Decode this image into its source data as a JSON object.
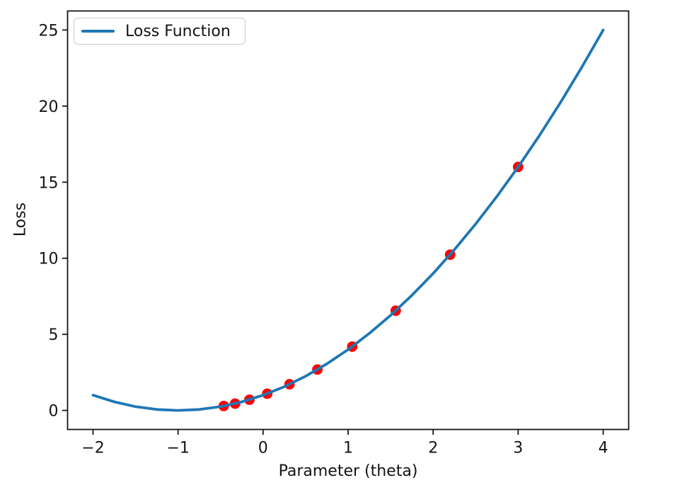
{
  "chart_data": {
    "type": "line",
    "xlabel": "Parameter (theta)",
    "ylabel": "Loss",
    "xlim": [
      -2.3,
      4.3
    ],
    "ylim": [
      -1.25,
      26.25
    ],
    "grid": false,
    "background": "#ffffff",
    "x_ticks": {
      "values": [
        -2,
        -1,
        0,
        1,
        2,
        3,
        4
      ],
      "labels": [
        "−2",
        "−1",
        "0",
        "1",
        "2",
        "3",
        "4"
      ]
    },
    "y_ticks": {
      "values": [
        0,
        5,
        10,
        15,
        20,
        25
      ],
      "labels": [
        "0",
        "5",
        "10",
        "15",
        "20",
        "25"
      ]
    },
    "legend": {
      "position": "upper left",
      "entries": [
        {
          "label": "Loss Function",
          "color": "#1f77b4",
          "marker": "line"
        }
      ]
    },
    "series": [
      {
        "name": "Loss Function",
        "type": "line",
        "color": "#1f77b4",
        "x": [
          -2,
          -1.75,
          -1.5,
          -1.25,
          -1,
          -0.75,
          -0.5,
          -0.25,
          0,
          0.25,
          0.5,
          0.75,
          1,
          1.25,
          1.5,
          1.75,
          2,
          2.25,
          2.5,
          2.75,
          3,
          3.25,
          3.5,
          3.75,
          4
        ],
        "y": [
          1,
          0.5625,
          0.25,
          0.0625,
          0,
          0.0625,
          0.25,
          0.5625,
          1,
          1.5625,
          2.25,
          3.0625,
          4,
          5.0625,
          6.25,
          7.5625,
          9,
          10.5625,
          12.25,
          14.0625,
          16,
          18.0625,
          20.25,
          22.5625,
          25
        ]
      },
      {
        "type": "scatter",
        "color": "#ff0000",
        "x": [
          3.0,
          2.2,
          1.56,
          1.048,
          0.6384,
          0.3107,
          0.0486,
          -0.1611,
          -0.3289,
          -0.4631
        ],
        "y": [
          16.0,
          10.24,
          6.5536,
          4.1943,
          2.6844,
          1.718,
          1.0995,
          0.7037,
          0.4504,
          0.2882
        ]
      }
    ]
  }
}
